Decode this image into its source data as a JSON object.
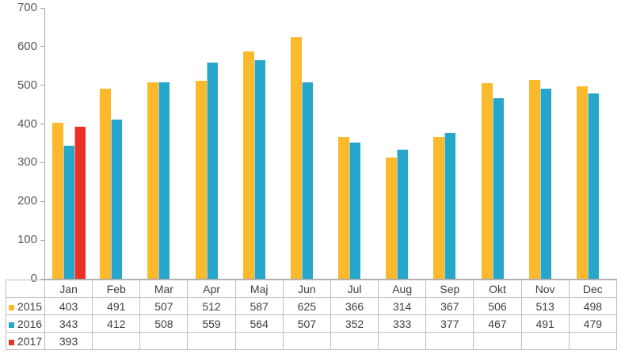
{
  "chart_data": {
    "type": "bar",
    "title": "",
    "xlabel": "",
    "ylabel": "",
    "categories": [
      "Jan",
      "Feb",
      "Mar",
      "Apr",
      "Maj",
      "Jun",
      "Jul",
      "Aug",
      "Sep",
      "Okt",
      "Nov",
      "Dec"
    ],
    "series": [
      {
        "name": "2015",
        "color": "#FCB92C",
        "values": [
          403,
          491,
          507,
          512,
          587,
          625,
          366,
          314,
          367,
          506,
          513,
          498
        ]
      },
      {
        "name": "2016",
        "color": "#26A6CA",
        "values": [
          343,
          412,
          508,
          559,
          564,
          507,
          352,
          333,
          377,
          467,
          491,
          479
        ]
      },
      {
        "name": "2017",
        "color": "#EC3124",
        "values": [
          393,
          null,
          null,
          null,
          null,
          null,
          null,
          null,
          null,
          null,
          null,
          null
        ]
      }
    ],
    "ylim": [
      0,
      700
    ],
    "ytick_step": 100,
    "ytick_labels": [
      "0",
      "100",
      "200",
      "300",
      "400",
      "500",
      "600",
      "700"
    ],
    "grid": false,
    "legend_position": "data-table-left",
    "data_table_shown": true
  },
  "colors": {
    "background": "#FFFFFF",
    "axis_line": "#A6A6A6",
    "axis_text": "#595959",
    "table_border": "#BFBFBF",
    "table_text": "#404040"
  }
}
